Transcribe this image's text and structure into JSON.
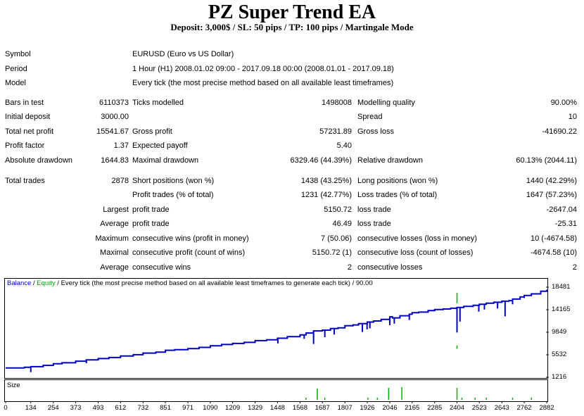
{
  "header": {
    "title": "PZ Super Trend EA",
    "subtitle": "Deposit: 3,000$ / SL: 50 pips / TP: 100 pips / Martingale Mode"
  },
  "report": {
    "symbol_label": "Symbol",
    "symbol_value": "EURUSD (Euro vs US Dollar)",
    "period_label": "Period",
    "period_value": "1 Hour (H1) 2008.01.02 09:00 - 2017.09.18 00:00 (2008.01.01 - 2017.09.18)",
    "model_label": "Model",
    "model_value": "Every tick (the most precise method based on all available least timeframes)",
    "bars_label": "Bars in test",
    "bars_value": "6110373",
    "ticks_label": "Ticks modelled",
    "ticks_value": "1498008",
    "quality_label": "Modelling quality",
    "quality_value": "90.00%",
    "initdep_label": "Initial deposit",
    "initdep_value": "3000.00",
    "spread_label": "Spread",
    "spread_value": "10",
    "netprofit_label": "Total net profit",
    "netprofit_value": "15541.67",
    "grossprofit_label": "Gross profit",
    "grossprofit_value": "57231.89",
    "grossloss_label": "Gross loss",
    "grossloss_value": "-41690.22",
    "pf_label": "Profit factor",
    "pf_value": "1.37",
    "payoff_label": "Expected payoff",
    "payoff_value": "5.40",
    "absdd_label": "Absolute drawdown",
    "absdd_value": "1644.83",
    "maxdd_label": "Maximal drawdown",
    "maxdd_value": "6329.46 (44.39%)",
    "reldd_label": "Relative drawdown",
    "reldd_value": "60.13% (2044.11)",
    "trades_label": "Total trades",
    "trades_value": "2878",
    "short_label": "Short positions (won %)",
    "short_value": "1438 (43.25%)",
    "long_label": "Long positions (won %)",
    "long_value": "1440 (42.29%)",
    "pt_label": "Profit trades (% of total)",
    "pt_value": "1231 (42.77%)",
    "lt_label": "Loss trades (% of total)",
    "lt_value": "1647 (57.23%)",
    "largest_label": "Largest",
    "lpt_label": "profit trade",
    "lpt_value": "5150.72",
    "llt_label": "loss trade",
    "llt_value": "-2647.04",
    "average_label": "Average",
    "apt_label": "profit trade",
    "apt_value": "46.49",
    "alt_label": "loss trade",
    "alt_value": "-25.31",
    "maximum_label": "Maximum",
    "mcw_label": "consecutive wins (profit in money)",
    "mcw_value": "7 (50.06)",
    "mcl_label": "consecutive losses (loss in money)",
    "mcl_value": "10 (-4674.58)",
    "maximal_label": "Maximal",
    "mcp_label": "consecutive profit (count of wins)",
    "mcp_value": "5150.72 (1)",
    "mclc_label": "consecutive loss (count of losses)",
    "mclc_value": "-4674.58 (10)",
    "average2_label": "Average",
    "acw_label": "consecutive wins",
    "acw_value": "2",
    "acl_label": "consecutive losses",
    "acl_value": "2"
  },
  "chart_data": {
    "type": "line",
    "legend": {
      "balance": "Balance",
      "sep1": " / ",
      "equity": "Equity",
      "rest": " / Every tick (the most precise method based on all available least timeframes to generate each tick) / 90.00"
    },
    "size_label": "Size",
    "x_ticks": [
      "0",
      "134",
      "254",
      "373",
      "493",
      "612",
      "732",
      "851",
      "971",
      "1090",
      "1209",
      "1329",
      "1448",
      "1568",
      "1687",
      "1807",
      "1926",
      "2046",
      "2165",
      "2285",
      "2404",
      "2523",
      "2643",
      "2762",
      "2882"
    ],
    "y_ticks": [
      "18481",
      "14165",
      "9849",
      "5532",
      "1216"
    ],
    "xlim": [
      0,
      2878
    ],
    "ylim": [
      1216,
      18481
    ],
    "series": [
      {
        "name": "Balance",
        "color": "#0000c0",
        "x": [
          0,
          100,
          134,
          200,
          254,
          300,
          373,
          430,
          493,
          550,
          612,
          680,
          732,
          800,
          851,
          900,
          971,
          1030,
          1090,
          1150,
          1209,
          1270,
          1329,
          1390,
          1448,
          1500,
          1568,
          1600,
          1640,
          1687,
          1730,
          1770,
          1807,
          1850,
          1880,
          1926,
          1960,
          2000,
          2046,
          2060,
          2100,
          2150,
          2165,
          2200,
          2250,
          2285,
          2330,
          2370,
          2404,
          2440,
          2490,
          2523,
          2560,
          2600,
          2643,
          2680,
          2700,
          2740,
          2762,
          2800,
          2850,
          2882
        ],
        "y": [
          3000,
          3150,
          3250,
          3500,
          3800,
          4000,
          4300,
          4550,
          4800,
          5000,
          5300,
          5550,
          5850,
          6050,
          6400,
          6500,
          6700,
          6950,
          7250,
          7500,
          7700,
          7900,
          8250,
          8400,
          8700,
          9000,
          9350,
          9700,
          10100,
          10250,
          10550,
          10700,
          11100,
          11250,
          11500,
          11800,
          12000,
          12300,
          12800,
          12600,
          13000,
          13300,
          13600,
          13700,
          14000,
          14200,
          14300,
          14450,
          14600,
          14800,
          15000,
          15200,
          15400,
          15600,
          15800,
          15900,
          16200,
          16600,
          16900,
          17200,
          17700,
          18000
        ]
      }
    ],
    "drawdowns_x": [
      134,
      430,
      1450,
      1590,
      1640,
      1700,
      1750,
      1900,
      1925,
      1940,
      2046,
      2070,
      2150,
      2404,
      2420,
      2520,
      2550,
      2620,
      2660,
      2700,
      2762
    ],
    "drawdowns_y": [
      2200,
      3900,
      7700,
      8600,
      7600,
      8900,
      9400,
      9900,
      10400,
      10600,
      11200,
      11500,
      12200,
      9800,
      11900,
      13800,
      14200,
      14400,
      12900,
      15200,
      16400
    ],
    "equity_spikes_x": [
      2404
    ],
    "equity_spikes_y": [
      [
        6700,
        17400
      ]
    ],
    "size_bars_x": [
      1600,
      1660,
      1700,
      1930,
      1980,
      2040,
      2110,
      2404,
      2430,
      2500,
      2560,
      2700,
      2800
    ],
    "size_bars_h": [
      0.15,
      0.8,
      0.15,
      0.15,
      0.15,
      0.85,
      0.9,
      0.85,
      0.15,
      0.15,
      0.15,
      0.15,
      0.15
    ]
  }
}
